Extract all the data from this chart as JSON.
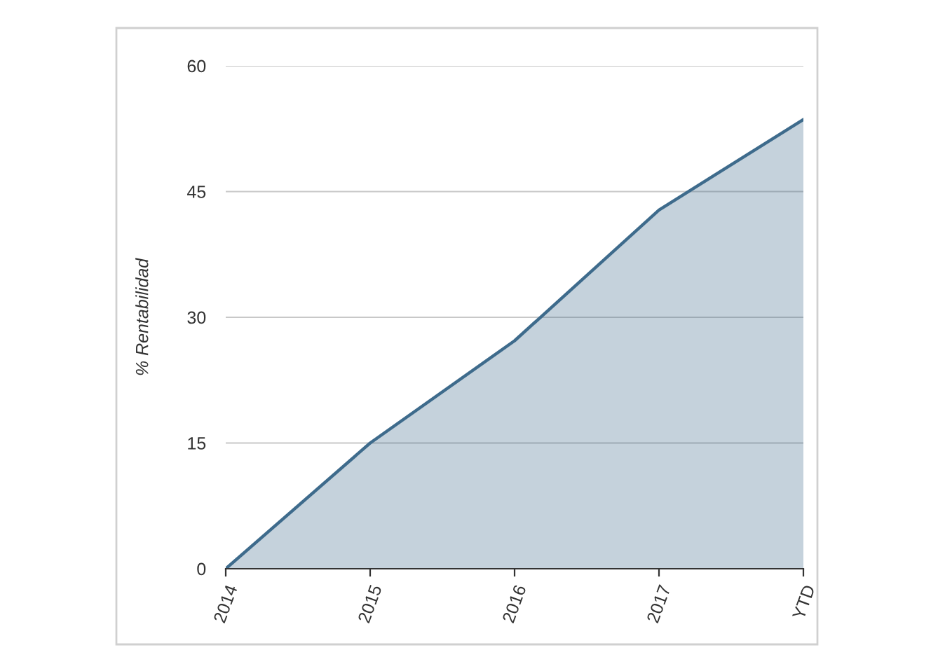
{
  "chart_data": {
    "type": "area",
    "ylabel": "% Rentabilidad",
    "categories": [
      "2014",
      "2015",
      "2016",
      "2017",
      "YTD"
    ],
    "series": [
      {
        "color": "#3e6b8c",
        "values": [
          0,
          15,
          27.2,
          42.8,
          53.6
        ]
      }
    ],
    "ylim": [
      0,
      60
    ],
    "yticks": [
      0,
      15,
      30,
      45,
      60
    ],
    "grid": "y",
    "legend": false,
    "marker": "none",
    "line_style": "solid"
  }
}
